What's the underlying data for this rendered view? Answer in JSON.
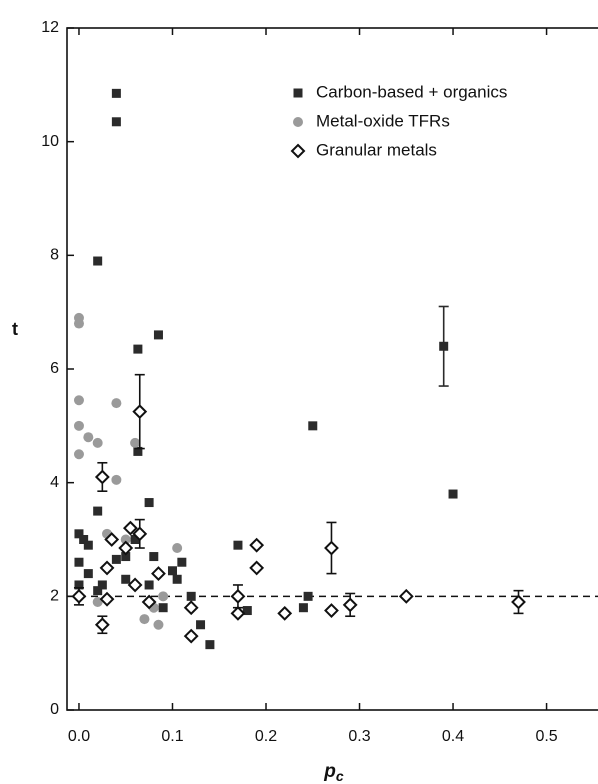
{
  "chart_data": {
    "type": "scatter",
    "x_label": "p",
    "x_label_sub": "c",
    "y_label": "t",
    "xlim": [
      -0.0128,
      0.555
    ],
    "ylim": [
      0,
      12
    ],
    "xticks": [
      {
        "value": 0,
        "label": "0.0"
      },
      0.1,
      0.2,
      0.3,
      0.4,
      0.5
    ],
    "yticks": [
      0,
      2,
      4,
      6,
      8,
      10,
      12
    ],
    "reference_line": 2,
    "legend": "upper right",
    "series": [
      {
        "name": "Carbon-based + organics",
        "marker": "square",
        "color": "#2b2b2b",
        "x": [
          0.04,
          0.04,
          0.02,
          0.085,
          0.063,
          0.063,
          0.075,
          0.25,
          0.39,
          0.4,
          0.0,
          0.005,
          0.02,
          0.01,
          0.0,
          0.01,
          0.0,
          0.02,
          0.025,
          0.04,
          0.05,
          0.06,
          0.08,
          0.075,
          0.1,
          0.105,
          0.11,
          0.12,
          0.09,
          0.13,
          0.14,
          0.17,
          0.18,
          0.24,
          0.245,
          0.05
        ],
        "values": [
          10.85,
          10.35,
          7.9,
          6.6,
          6.35,
          4.55,
          3.65,
          5.0,
          6.4,
          3.8,
          3.1,
          3.0,
          3.5,
          2.9,
          2.6,
          2.4,
          2.2,
          2.1,
          2.2,
          2.65,
          2.7,
          3.0,
          2.7,
          2.2,
          2.45,
          2.3,
          2.6,
          2.0,
          1.8,
          1.5,
          1.15,
          2.9,
          1.75,
          1.8,
          2.0,
          2.3
        ],
        "errors": [
          null,
          null,
          null,
          null,
          null,
          null,
          null,
          null,
          0.7,
          null,
          null,
          null,
          null,
          null,
          null,
          null,
          null,
          null,
          null,
          null,
          null,
          null,
          null,
          null,
          null,
          null,
          null,
          null,
          null,
          null,
          null,
          null,
          null,
          null,
          null,
          null
        ]
      },
      {
        "name": "Metal-oxide TFRs",
        "marker": "circle",
        "color": "#9a9a9a",
        "x": [
          0.0,
          0.0,
          0.0,
          0.0,
          0.0,
          0.01,
          0.02,
          0.04,
          0.06,
          0.04,
          0.03,
          0.05,
          0.0,
          0.02,
          0.08,
          0.09,
          0.105,
          0.07,
          0.085
        ],
        "values": [
          6.9,
          6.8,
          5.45,
          5.0,
          4.5,
          4.8,
          4.7,
          5.4,
          4.7,
          4.05,
          3.1,
          3.0,
          2.0,
          1.9,
          1.8,
          2.0,
          2.85,
          1.6,
          1.5
        ]
      },
      {
        "name": "Granular metals",
        "marker": "diamond",
        "color": "#111111",
        "x": [
          0.025,
          0.065,
          0.065,
          0.055,
          0.035,
          0.05,
          0.03,
          0.06,
          0.085,
          0.0,
          0.03,
          0.025,
          0.075,
          0.12,
          0.12,
          0.17,
          0.17,
          0.19,
          0.19,
          0.22,
          0.27,
          0.27,
          0.29,
          0.35,
          0.47
        ],
        "values": [
          4.1,
          5.25,
          3.1,
          3.2,
          3.0,
          2.85,
          2.5,
          2.2,
          2.4,
          2.0,
          1.95,
          1.5,
          1.9,
          1.8,
          1.3,
          2.0,
          1.7,
          2.9,
          2.5,
          1.7,
          2.85,
          1.75,
          1.85,
          2.0,
          1.9
        ],
        "errors": [
          0.25,
          0.65,
          0.25,
          null,
          null,
          null,
          null,
          null,
          null,
          0.15,
          null,
          0.15,
          null,
          null,
          null,
          0.2,
          null,
          null,
          null,
          null,
          0.45,
          null,
          0.2,
          null,
          0.2
        ]
      }
    ]
  }
}
